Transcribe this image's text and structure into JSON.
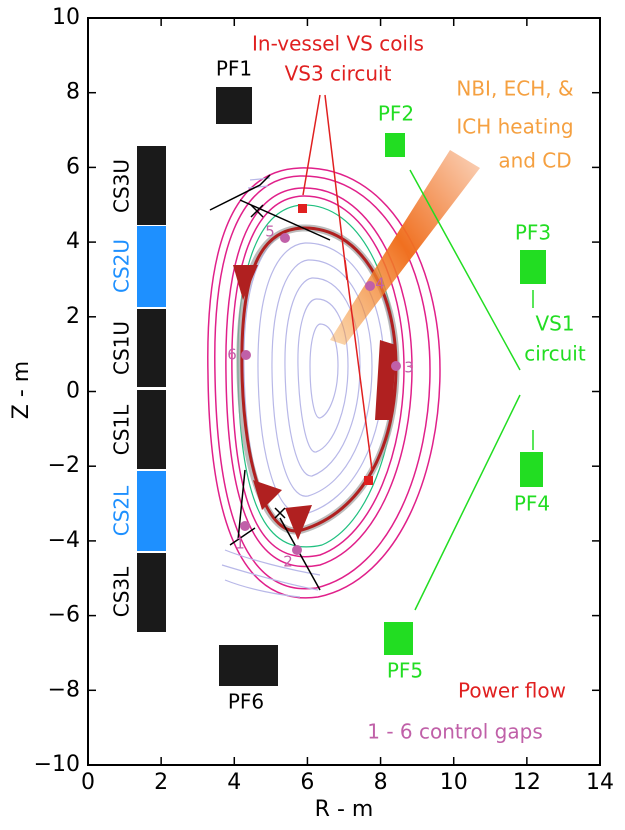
{
  "axes": {
    "xlabel": "R - m",
    "ylabel": "Z - m",
    "xlim": [
      0,
      14
    ],
    "ylim": [
      -10,
      10
    ],
    "xticks": [
      0,
      2,
      4,
      6,
      8,
      10,
      12,
      14
    ],
    "yticks": [
      {
        "value": -10,
        "label": "−10"
      },
      {
        "value": -8,
        "label": "−8"
      },
      {
        "value": -6,
        "label": "−6"
      },
      {
        "value": -4,
        "label": "−4"
      },
      {
        "value": -2,
        "label": "−2"
      },
      0,
      2,
      4,
      6,
      8,
      10
    ]
  },
  "coils": {
    "central_solenoid": [
      "CS3U",
      "CS2U",
      "CS1U",
      "CS1L",
      "CS2L",
      "CS3L"
    ],
    "poloidal_field": [
      "PF1",
      "PF2",
      "PF3",
      "PF4",
      "PF5",
      "PF6"
    ]
  },
  "annotations": {
    "in_vessel": "In-vessel VS coils",
    "vs3": "VS3 circuit",
    "heating": [
      "NBI, ECH, &",
      "ICH heating",
      "and CD"
    ],
    "vs1": [
      "VS1",
      "circuit"
    ],
    "power_flow": "Power flow",
    "control_gaps": "1 - 6 control gaps"
  },
  "gap_labels": [
    "1",
    "2",
    "3",
    "4",
    "5",
    "6"
  ]
}
